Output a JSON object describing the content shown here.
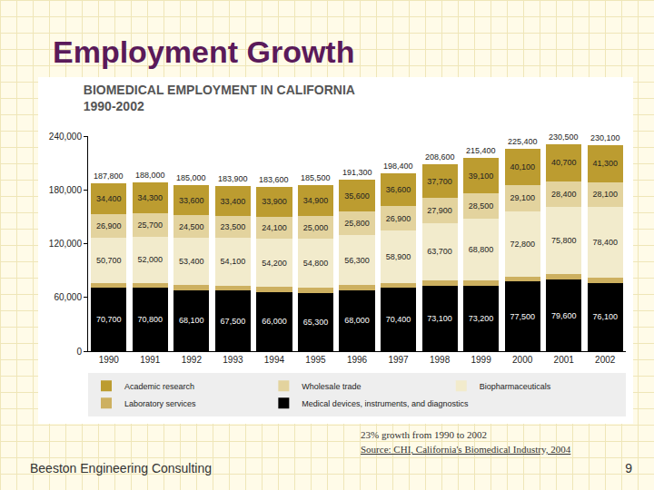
{
  "slide": {
    "title": "Employment Growth",
    "note": "23% growth from 1990 to 2002",
    "source": "Source: CHI, California's Biomedical Industry, 2004",
    "footer": "Beeston Engineering Consulting",
    "page": "9"
  },
  "chart_data": {
    "type": "bar",
    "stacked": true,
    "data_labels": true,
    "grid": false,
    "legend": "bottom",
    "title": "BIOMEDICAL EMPLOYMENT IN CALIFORNIA",
    "subtitle": "1990-2002",
    "categories": [
      "1990",
      "1991",
      "1992",
      "1993",
      "1994",
      "1995",
      "1996",
      "1997",
      "1998",
      "1999",
      "2000",
      "2001",
      "2002"
    ],
    "ylim": [
      0,
      240000
    ],
    "yticks": [
      0,
      {
        "value": 60000,
        "label": "60,000"
      },
      {
        "value": 120000,
        "label": "120,000"
      },
      {
        "value": 180000,
        "label": "180,000"
      },
      {
        "value": 240000,
        "label": "240,000"
      }
    ],
    "series": [
      {
        "name": "Medical devices, instruments, and diagnostics",
        "color": "#000000",
        "values": [
          70700,
          70800,
          68100,
          67500,
          66000,
          65300,
          68000,
          70400,
          73100,
          73200,
          77500,
          79600,
          76100
        ],
        "value_labels": [
          "70,700",
          "70,800",
          "68,100",
          "67,500",
          "66,000",
          "65,300",
          "68,000",
          "70,400",
          "73,100",
          "73,200",
          "77,500",
          "79,600",
          "76,100"
        ]
      },
      {
        "name": "Laboratory services",
        "color": "#cdb060",
        "data_labels": false,
        "values": [
          5100,
          5200,
          5400,
          5400,
          5400,
          5500,
          5600,
          5600,
          6200,
          5800,
          5900,
          6000,
          6200
        ]
      },
      {
        "name": "Biopharmaceuticals",
        "color": "#f2ebcc",
        "values": [
          50700,
          52000,
          53400,
          54100,
          54200,
          54800,
          56300,
          58900,
          63700,
          68800,
          72800,
          75800,
          78400
        ],
        "value_labels": [
          "50,700",
          "52,000",
          "53,400",
          "54,100",
          "54,200",
          "54,800",
          "56,300",
          "58,900",
          "63,700",
          "68,800",
          "72,800",
          "75,800",
          "78,400"
        ]
      },
      {
        "name": "Wholesale trade",
        "color": "#e3d39e",
        "values": [
          26900,
          25700,
          24500,
          23500,
          24100,
          25000,
          25800,
          26900,
          27900,
          28500,
          29100,
          28400,
          28100
        ],
        "value_labels": [
          "26,900",
          "25,700",
          "24,500",
          "23,500",
          "24,100",
          "25,000",
          "25,800",
          "26,900",
          "27,900",
          "28,500",
          "29,100",
          "28,400",
          "28,100"
        ]
      },
      {
        "name": "Academic research",
        "color": "#bc9c30",
        "values": [
          34400,
          34300,
          33600,
          33400,
          33900,
          34900,
          35600,
          36600,
          37700,
          39100,
          40100,
          40700,
          41300
        ],
        "value_labels": [
          "34,400",
          "34,300",
          "33,600",
          "33,400",
          "33,900",
          "34,900",
          "35,600",
          "36,600",
          "37,700",
          "39,100",
          "40,100",
          "40,700",
          "41,300"
        ]
      }
    ],
    "totals": {
      "values": [
        187800,
        188000,
        185000,
        183900,
        183600,
        185500,
        191300,
        198400,
        208600,
        215400,
        225400,
        230500,
        230100
      ],
      "value_labels": [
        "187,800",
        "188,000",
        "185,000",
        "183,900",
        "183,600",
        "185,500",
        "191,300",
        "198,400",
        "208,600",
        "215,400",
        "225,400",
        "230,500",
        "230,100"
      ]
    }
  }
}
